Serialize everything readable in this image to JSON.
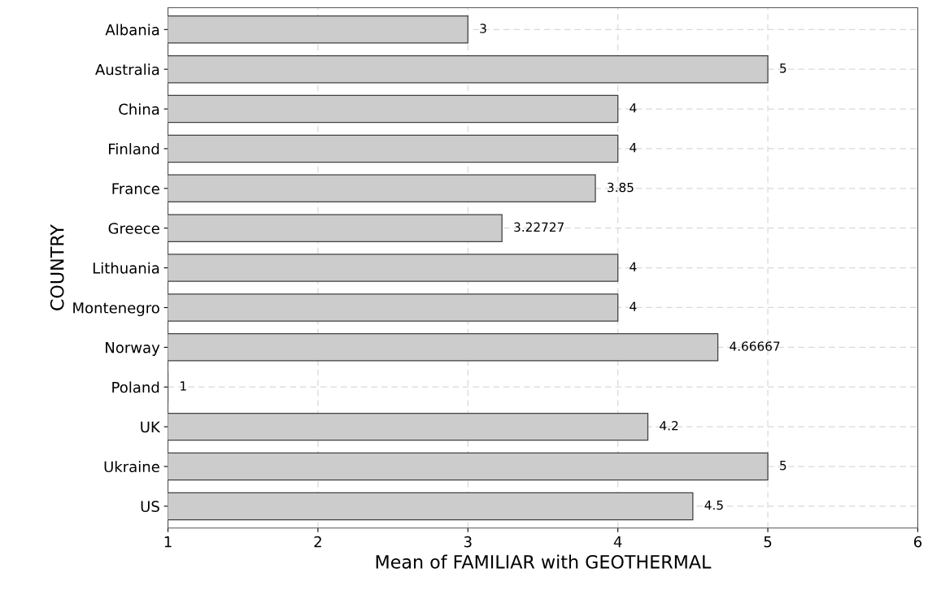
{
  "chart_data": {
    "type": "bar",
    "orientation": "horizontal",
    "categories": [
      "Albania",
      "Australia",
      "China",
      "Finland",
      "France",
      "Greece",
      "Lithuania",
      "Montenegro",
      "Norway",
      "Poland",
      "UK",
      "Ukraine",
      "US"
    ],
    "values": [
      3,
      5,
      4,
      4,
      3.85,
      3.22727,
      4,
      4,
      4.66667,
      1,
      4.2,
      5,
      4.5
    ],
    "color": "#cccccc",
    "xlim": [
      1,
      6
    ],
    "xticks": [
      1,
      2,
      3,
      4,
      5,
      6
    ],
    "xlabel": "Mean of FAMILIAR with GEOTHERMAL",
    "ylabel": "COUNTRY",
    "data_labels": true,
    "grid": true
  }
}
